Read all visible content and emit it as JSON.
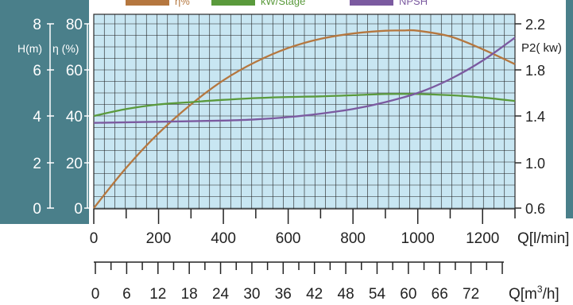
{
  "chart_data": {
    "type": "line",
    "legend": {
      "placement": "top",
      "items": [
        {
          "label": "η%",
          "color": "#b5773f"
        },
        {
          "label": "kW/Stage",
          "color": "#5a9a3c"
        },
        {
          "label": "NPSH",
          "color": "#7b5aa0"
        }
      ]
    },
    "left_axes": {
      "h": {
        "label": "H(m)",
        "ticks": [
          "8",
          "6",
          "4",
          "2",
          "0"
        ],
        "range": [
          0,
          8
        ]
      },
      "eta": {
        "label": "η (%)",
        "ticks": [
          "80",
          "60",
          "40",
          "20",
          "0"
        ],
        "range": [
          0,
          80
        ]
      }
    },
    "right_axis": {
      "label": "P2( kw)",
      "ticks": [
        "2.2",
        "1.8",
        "1.4",
        "1.0",
        "0.6"
      ],
      "range": [
        0.6,
        2.2
      ]
    },
    "x_axis_flow": {
      "label": "Q[l/min]",
      "ticks": [
        "0",
        "200",
        "400",
        "600",
        "800",
        "1000",
        "1200"
      ],
      "range": [
        0,
        1300
      ]
    },
    "x_axis_flow_m3": {
      "label": "Q[m",
      "label_sup": "3",
      "label_tail": "/h]",
      "ticks": [
        "0",
        "6",
        "12",
        "18",
        "24",
        "30",
        "36",
        "42",
        "48",
        "54",
        "60",
        "66",
        "72"
      ]
    },
    "grid": true,
    "series": [
      {
        "name": "η%",
        "axis": "eta",
        "color": "#b5773f",
        "x": [
          0,
          100,
          200,
          300,
          400,
          500,
          600,
          700,
          800,
          900,
          950,
          1000,
          1100,
          1200,
          1300
        ],
        "y": [
          0,
          17.5,
          32.5,
          45,
          55.5,
          63.5,
          69.5,
          73.5,
          75.8,
          77,
          77.1,
          77,
          74.5,
          69,
          62.5
        ]
      },
      {
        "name": "kW/Stage",
        "axis": "right",
        "color": "#5a9a3c",
        "x": [
          0,
          100,
          200,
          300,
          400,
          500,
          600,
          700,
          800,
          900,
          1000,
          1100,
          1200,
          1300
        ],
        "y": [
          1.4,
          1.46,
          1.5,
          1.52,
          1.54,
          1.555,
          1.565,
          1.57,
          1.58,
          1.59,
          1.59,
          1.58,
          1.56,
          1.53
        ]
      },
      {
        "name": "NPSH",
        "axis": "h",
        "color": "#7b5aa0",
        "x": [
          0,
          200,
          400,
          500,
          600,
          700,
          800,
          900,
          1000,
          1100,
          1200,
          1300
        ],
        "y": [
          3.7,
          3.75,
          3.8,
          3.85,
          3.95,
          4.1,
          4.3,
          4.6,
          5.0,
          5.6,
          6.4,
          7.4
        ]
      }
    ]
  }
}
